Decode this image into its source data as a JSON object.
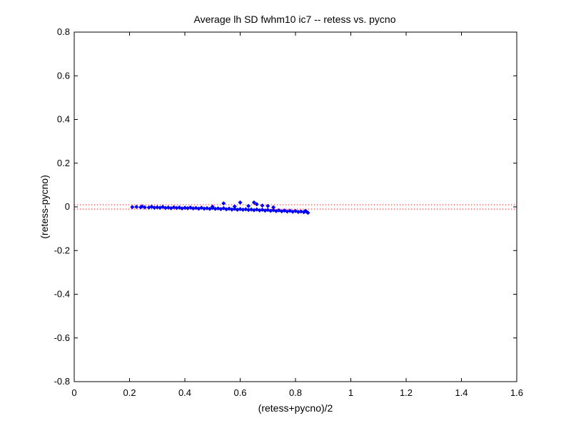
{
  "chart_data": {
    "type": "scatter",
    "title": "Average lh SD fwhm10 ic7 -- retess vs. pycno",
    "xlabel": "(retess+pycno)/2",
    "ylabel": "(retess-pycno)",
    "xlim": [
      0,
      1.6
    ],
    "ylim": [
      -0.8,
      0.8
    ],
    "x_ticks": [
      0,
      0.2,
      0.4,
      0.6,
      0.8,
      1,
      1.2,
      1.4,
      1.6
    ],
    "x_tick_labels": [
      "0",
      "0.2",
      "0.4",
      "0.6",
      "0.8",
      "1",
      "1.2",
      "1.4",
      "1.6"
    ],
    "y_ticks": [
      -0.8,
      -0.6,
      -0.4,
      -0.2,
      0,
      0.2,
      0.4,
      0.6,
      0.8
    ],
    "y_tick_labels": [
      "-0.8",
      "-0.6",
      "-0.4",
      "-0.2",
      "0",
      "0.2",
      "0.4",
      "0.6",
      "0.8"
    ],
    "grid": false,
    "legend": "none",
    "reference_lines": [
      {
        "y": 0.01,
        "style": "dotted",
        "color": "#ff0000"
      },
      {
        "y": -0.01,
        "style": "dotted",
        "color": "#ff0000"
      }
    ],
    "series": [
      {
        "marker": "diamond",
        "color": "#0000ff",
        "points": [
          [
            0.21,
            -0.001
          ],
          [
            0.225,
            0.0
          ],
          [
            0.24,
            -0.002
          ],
          [
            0.245,
            0.002
          ],
          [
            0.255,
            -0.002
          ],
          [
            0.27,
            -0.003
          ],
          [
            0.28,
            0.001
          ],
          [
            0.29,
            -0.004
          ],
          [
            0.3,
            -0.002
          ],
          [
            0.31,
            -0.004
          ],
          [
            0.32,
            0.0
          ],
          [
            0.33,
            -0.005
          ],
          [
            0.34,
            -0.003
          ],
          [
            0.35,
            -0.006
          ],
          [
            0.36,
            -0.002
          ],
          [
            0.37,
            -0.005
          ],
          [
            0.38,
            -0.003
          ],
          [
            0.39,
            -0.007
          ],
          [
            0.4,
            -0.004
          ],
          [
            0.41,
            -0.006
          ],
          [
            0.42,
            -0.003
          ],
          [
            0.43,
            -0.007
          ],
          [
            0.44,
            -0.005
          ],
          [
            0.45,
            -0.008
          ],
          [
            0.46,
            -0.004
          ],
          [
            0.47,
            -0.008
          ],
          [
            0.48,
            -0.006
          ],
          [
            0.49,
            -0.009
          ],
          [
            0.5,
            -0.005
          ],
          [
            0.51,
            -0.009
          ],
          [
            0.52,
            -0.007
          ],
          [
            0.53,
            -0.01
          ],
          [
            0.54,
            -0.006
          ],
          [
            0.55,
            -0.011
          ],
          [
            0.56,
            -0.008
          ],
          [
            0.57,
            -0.012
          ],
          [
            0.58,
            -0.009
          ],
          [
            0.59,
            -0.013
          ],
          [
            0.6,
            -0.01
          ],
          [
            0.61,
            -0.013
          ],
          [
            0.62,
            -0.011
          ],
          [
            0.63,
            -0.014
          ],
          [
            0.64,
            -0.012
          ],
          [
            0.65,
            -0.015
          ],
          [
            0.66,
            -0.012
          ],
          [
            0.67,
            -0.016
          ],
          [
            0.68,
            -0.013
          ],
          [
            0.69,
            -0.017
          ],
          [
            0.7,
            -0.014
          ],
          [
            0.71,
            -0.018
          ],
          [
            0.72,
            -0.015
          ],
          [
            0.73,
            -0.019
          ],
          [
            0.74,
            -0.016
          ],
          [
            0.75,
            -0.02
          ],
          [
            0.76,
            -0.017
          ],
          [
            0.77,
            -0.021
          ],
          [
            0.78,
            -0.018
          ],
          [
            0.79,
            -0.022
          ],
          [
            0.8,
            -0.019
          ],
          [
            0.81,
            -0.023
          ],
          [
            0.82,
            -0.021
          ],
          [
            0.83,
            -0.024
          ],
          [
            0.84,
            -0.022
          ],
          [
            0.845,
            -0.027
          ],
          [
            0.835,
            -0.019
          ],
          [
            0.54,
            0.016
          ],
          [
            0.6,
            0.02
          ],
          [
            0.65,
            0.02
          ],
          [
            0.66,
            0.012
          ],
          [
            0.7,
            0.004
          ],
          [
            0.72,
            -0.002
          ],
          [
            0.68,
            0.006
          ],
          [
            0.58,
            0.002
          ],
          [
            0.5,
            0.001
          ],
          [
            0.63,
            0.004
          ]
        ]
      }
    ]
  }
}
